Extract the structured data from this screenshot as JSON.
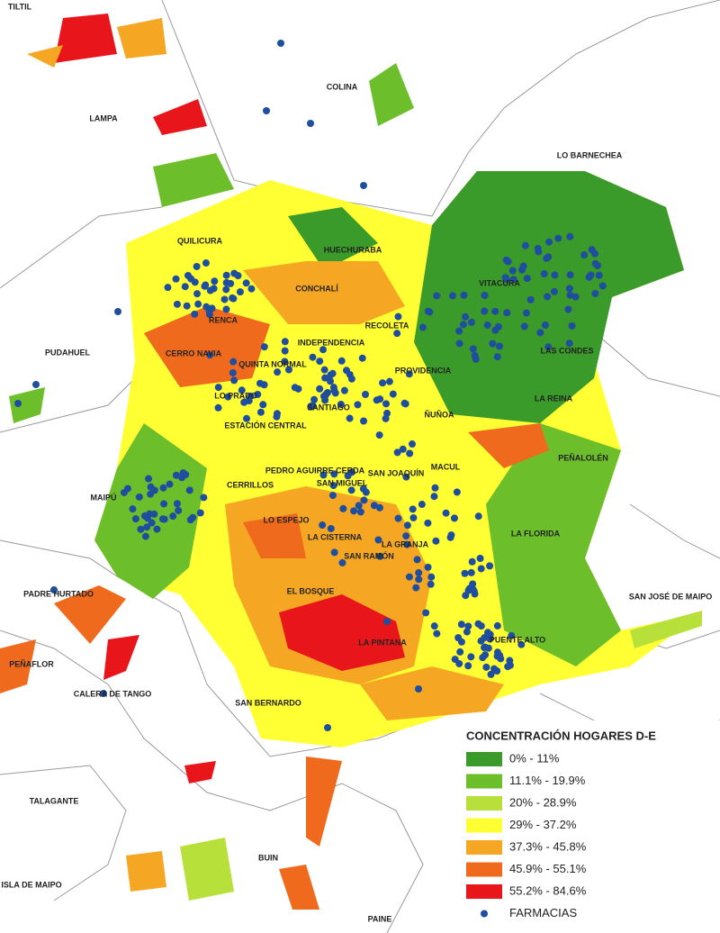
{
  "map": {
    "communes": [
      "TILTIL",
      "COLINA",
      "LAMPA",
      "LO BARNECHEA",
      "QUILICURA",
      "HUECHURABA",
      "CONCHALÍ",
      "VITACURA",
      "RENCA",
      "RECOLETA",
      "INDEPENDENCIA",
      "PUDAHUEL",
      "CERRO NAVIA",
      "LAS CONDES",
      "QUINTA NORMAL",
      "PROVIDENCIA",
      "LO PRADO",
      "LA REINA",
      "SANTIAGO",
      "ÑUÑOA",
      "ESTACIÓN CENTRAL",
      "PEÑALOLÉN",
      "PEDRO AGUIRRE CERDA",
      "SAN JOAQUÍN",
      "MACUL",
      "CERRILLOS",
      "SAN MIGUEL",
      "MAIPÚ",
      "LO ESPEJO",
      "LA FLORIDA",
      "LA CISTERNA",
      "LA GRANJA",
      "SAN RAMÓN",
      "EL BOSQUE",
      "PADRE HURTADO",
      "SAN JOSÉ DE MAIPO",
      "PUENTE ALTO",
      "LA PINTANA",
      "PEÑAFLOR",
      "CALERA DE TANGO",
      "SAN BERNARDO",
      "TALAGANTE",
      "BUIN",
      "ISLA DE MAIPO",
      "PAINE"
    ],
    "legend": {
      "title": "CONCENTRACIÓN HOGARES D-E",
      "classes": [
        {
          "label": "0% - 11%",
          "color": "#3a9a2a"
        },
        {
          "label": "11.1% - 19.9%",
          "color": "#6cbf2a"
        },
        {
          "label": "20% - 28.9%",
          "color": "#b8e03a"
        },
        {
          "label": "29% - 37.2%",
          "color": "#ffff33"
        },
        {
          "label": "37.3% - 45.8%",
          "color": "#f5a623"
        },
        {
          "label": "45.9% - 55.1%",
          "color": "#f06a1e"
        },
        {
          "label": "55.2% - 84.6%",
          "color": "#e8161a"
        }
      ],
      "points": {
        "label": "FARMACIAS",
        "color": "#1f4e9e"
      }
    }
  }
}
